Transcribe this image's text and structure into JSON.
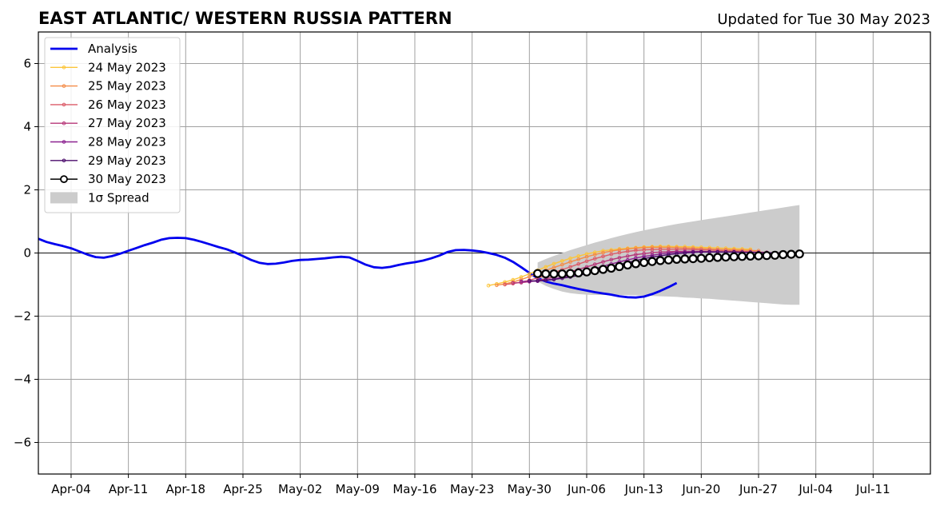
{
  "chart_data": {
    "type": "line",
    "title": "EAST ATLANTIC/ WESTERN RUSSIA PATTERN",
    "subtitle": "Updated for Tue 30 May 2023",
    "xlabel": "",
    "ylabel": "",
    "xlim": [
      "2023-03-31",
      "2023-07-18"
    ],
    "ylim": [
      -7,
      7
    ],
    "grid": true,
    "legend_position": "top-left",
    "x_ticks": [
      "2023-04-04",
      "2023-04-11",
      "2023-04-18",
      "2023-04-25",
      "2023-05-02",
      "2023-05-09",
      "2023-05-16",
      "2023-05-23",
      "2023-05-30",
      "2023-06-06",
      "2023-06-13",
      "2023-06-20",
      "2023-06-27",
      "2023-07-04",
      "2023-07-11"
    ],
    "x_tick_labels": [
      "Apr-04",
      "Apr-11",
      "Apr-18",
      "Apr-25",
      "May-02",
      "May-09",
      "May-16",
      "May-23",
      "May-30",
      "Jun-06",
      "Jun-13",
      "Jun-20",
      "Jun-27",
      "Jul-04",
      "Jul-11"
    ],
    "y_ticks": [
      -6,
      -4,
      -2,
      0,
      2,
      4,
      6
    ],
    "y_tick_labels": [
      "−6",
      "−4",
      "−2",
      "0",
      "2",
      "4",
      "6"
    ],
    "analysis": {
      "name": "Analysis",
      "color": "#0000ee",
      "start": "2023-03-31",
      "values": [
        0.45,
        0.35,
        0.28,
        0.22,
        0.15,
        0.05,
        -0.05,
        -0.13,
        -0.15,
        -0.1,
        -0.02,
        0.07,
        0.16,
        0.25,
        0.33,
        0.42,
        0.47,
        0.48,
        0.47,
        0.42,
        0.35,
        0.27,
        0.19,
        0.12,
        0.02,
        -0.1,
        -0.22,
        -0.31,
        -0.35,
        -0.34,
        -0.3,
        -0.25,
        -0.22,
        -0.21,
        -0.19,
        -0.17,
        -0.14,
        -0.12,
        -0.14,
        -0.25,
        -0.37,
        -0.45,
        -0.47,
        -0.44,
        -0.38,
        -0.33,
        -0.29,
        -0.24,
        -0.17,
        -0.08,
        0.03,
        0.09,
        0.1,
        0.08,
        0.05,
        0.0,
        -0.06,
        -0.15,
        -0.28,
        -0.45,
        -0.63,
        -0.8,
        -0.9,
        -0.97,
        -1.02,
        -1.08,
        -1.14,
        -1.19,
        -1.24,
        -1.28,
        -1.32,
        -1.37,
        -1.4,
        -1.41,
        -1.38,
        -1.3,
        -1.2,
        -1.08,
        -0.95
      ]
    },
    "forecasts": [
      {
        "name": "24 May 2023",
        "color": "#fcc53a",
        "start": "2023-05-25",
        "values": [
          -1.03,
          -0.98,
          -0.92,
          -0.85,
          -0.76,
          -0.66,
          -0.55,
          -0.44,
          -0.34,
          -0.25,
          -0.17,
          -0.1,
          -0.03,
          0.02,
          0.07,
          0.1,
          0.13,
          0.15,
          0.17,
          0.19,
          0.2,
          0.21,
          0.21,
          0.2,
          0.2,
          0.19,
          0.18,
          0.17,
          0.16,
          0.15,
          0.14,
          0.13,
          0.12
        ]
      },
      {
        "name": "25 May 2023",
        "color": "#f48b47",
        "start": "2023-05-26",
        "values": [
          -1.02,
          -0.98,
          -0.92,
          -0.84,
          -0.75,
          -0.65,
          -0.55,
          -0.46,
          -0.37,
          -0.28,
          -0.2,
          -0.12,
          -0.05,
          0.01,
          0.06,
          0.1,
          0.13,
          0.15,
          0.17,
          0.18,
          0.18,
          0.18,
          0.17,
          0.16,
          0.15,
          0.14,
          0.13,
          0.12,
          0.11,
          0.1,
          0.09,
          0.08,
          0.07
        ]
      },
      {
        "name": "26 May 2023",
        "color": "#dc5b68",
        "start": "2023-05-27",
        "values": [
          -1.0,
          -0.97,
          -0.92,
          -0.86,
          -0.79,
          -0.71,
          -0.62,
          -0.53,
          -0.44,
          -0.35,
          -0.26,
          -0.18,
          -0.11,
          -0.04,
          0.01,
          0.05,
          0.08,
          0.1,
          0.11,
          0.12,
          0.12,
          0.12,
          0.12,
          0.11,
          0.1,
          0.09,
          0.08,
          0.07,
          0.06,
          0.05,
          0.04,
          0.03,
          0.02
        ]
      },
      {
        "name": "27 May 2023",
        "color": "#b73779",
        "start": "2023-05-28",
        "values": [
          -0.95,
          -0.94,
          -0.91,
          -0.87,
          -0.82,
          -0.76,
          -0.68,
          -0.6,
          -0.52,
          -0.44,
          -0.36,
          -0.28,
          -0.21,
          -0.15,
          -0.1,
          -0.05,
          -0.02,
          0.01,
          0.03,
          0.04,
          0.05,
          0.05,
          0.05,
          0.05,
          0.04,
          0.04,
          0.03,
          0.03,
          0.02,
          0.02,
          0.01,
          0.01,
          0.0
        ]
      },
      {
        "name": "28 May 2023",
        "color": "#8c2290",
        "start": "2023-05-29",
        "values": [
          -0.9,
          -0.9,
          -0.89,
          -0.86,
          -0.82,
          -0.77,
          -0.71,
          -0.64,
          -0.57,
          -0.5,
          -0.42,
          -0.35,
          -0.28,
          -0.22,
          -0.16,
          -0.11,
          -0.07,
          -0.03,
          0.0,
          0.02,
          0.03,
          0.04,
          0.04,
          0.04,
          0.04,
          0.03,
          0.03,
          0.02,
          0.02,
          0.01,
          0.01,
          0.0,
          0.0
        ]
      },
      {
        "name": "29 May 2023",
        "color": "#4b0c6b",
        "start": "2023-05-30",
        "values": [
          -0.88,
          -0.88,
          -0.86,
          -0.84,
          -0.8,
          -0.76,
          -0.71,
          -0.65,
          -0.58,
          -0.51,
          -0.44,
          -0.37,
          -0.3,
          -0.24,
          -0.18,
          -0.13,
          -0.09,
          -0.05,
          -0.02,
          0.0,
          0.02,
          0.03,
          0.03,
          0.03,
          0.03,
          0.03,
          0.02,
          0.02,
          0.01,
          0.01,
          0.0,
          0.0,
          0.0
        ]
      }
    ],
    "forecast_latest": {
      "name": "30 May 2023",
      "color": "#000000",
      "start": "2023-05-31",
      "values": [
        -0.65,
        -0.66,
        -0.66,
        -0.66,
        -0.65,
        -0.63,
        -0.6,
        -0.56,
        -0.52,
        -0.48,
        -0.43,
        -0.38,
        -0.34,
        -0.3,
        -0.27,
        -0.24,
        -0.22,
        -0.2,
        -0.19,
        -0.18,
        -0.17,
        -0.15,
        -0.14,
        -0.13,
        -0.12,
        -0.11,
        -0.1,
        -0.09,
        -0.08,
        -0.07,
        -0.05,
        -0.04,
        -0.03
      ]
    },
    "spread": {
      "name": "1σ Spread",
      "color": "#cccccc",
      "start": "2023-05-31",
      "upper": [
        -0.3,
        -0.19,
        -0.09,
        0.0,
        0.09,
        0.17,
        0.25,
        0.33,
        0.4,
        0.47,
        0.54,
        0.6,
        0.66,
        0.72,
        0.77,
        0.82,
        0.87,
        0.92,
        0.96,
        1.0,
        1.04,
        1.08,
        1.12,
        1.16,
        1.2,
        1.24,
        1.28,
        1.32,
        1.36,
        1.4,
        1.44,
        1.48,
        1.52
      ],
      "lower": [
        -0.9,
        -1.04,
        -1.14,
        -1.22,
        -1.27,
        -1.3,
        -1.32,
        -1.33,
        -1.33,
        -1.33,
        -1.33,
        -1.33,
        -1.34,
        -1.35,
        -1.36,
        -1.37,
        -1.38,
        -1.39,
        -1.41,
        -1.42,
        -1.44,
        -1.45,
        -1.47,
        -1.49,
        -1.51,
        -1.53,
        -1.55,
        -1.57,
        -1.59,
        -1.61,
        -1.63,
        -1.64,
        -1.64
      ]
    }
  }
}
